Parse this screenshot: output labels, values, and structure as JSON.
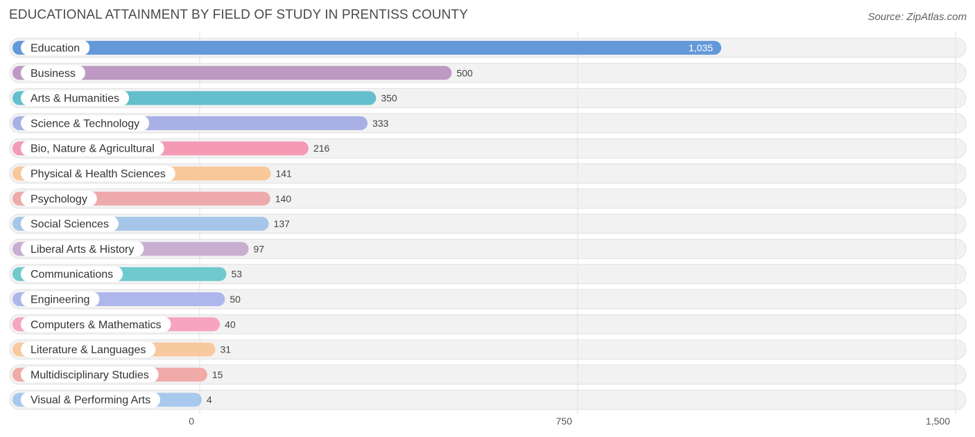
{
  "title": "EDUCATIONAL ATTAINMENT BY FIELD OF STUDY IN PRENTISS COUNTY",
  "source": "Source: ZipAtlas.com",
  "chart_data": {
    "type": "bar",
    "orientation": "horizontal",
    "title": "EDUCATIONAL ATTAINMENT BY FIELD OF STUDY IN PRENTISS COUNTY",
    "categories": [
      "Education",
      "Business",
      "Arts & Humanities",
      "Science & Technology",
      "Bio, Nature & Agricultural",
      "Physical & Health Sciences",
      "Psychology",
      "Social Sciences",
      "Liberal Arts & History",
      "Communications",
      "Engineering",
      "Computers & Mathematics",
      "Literature & Languages",
      "Multidisciplinary Studies",
      "Visual & Performing Arts"
    ],
    "values": [
      1035,
      500,
      350,
      333,
      216,
      141,
      140,
      137,
      97,
      53,
      50,
      40,
      31,
      15,
      4
    ],
    "value_labels": [
      "1,035",
      "500",
      "350",
      "333",
      "216",
      "141",
      "140",
      "137",
      "97",
      "53",
      "50",
      "40",
      "31",
      "15",
      "4"
    ],
    "colors": [
      "#6499d9",
      "#be99c4",
      "#62bfcb",
      "#a8b0e6",
      "#f49ab5",
      "#f8c89a",
      "#eeaaaa",
      "#a5c6e8",
      "#c8aed0",
      "#6fcacd",
      "#aeb6ec",
      "#f6a4c0",
      "#f8c99e",
      "#f0aaa8",
      "#a9c8ee"
    ],
    "xlim": [
      0,
      1500
    ],
    "xticks": [
      0,
      750,
      1500
    ],
    "xtick_labels": [
      "0",
      "750",
      "1,500"
    ],
    "grid": true,
    "legend": "none"
  }
}
